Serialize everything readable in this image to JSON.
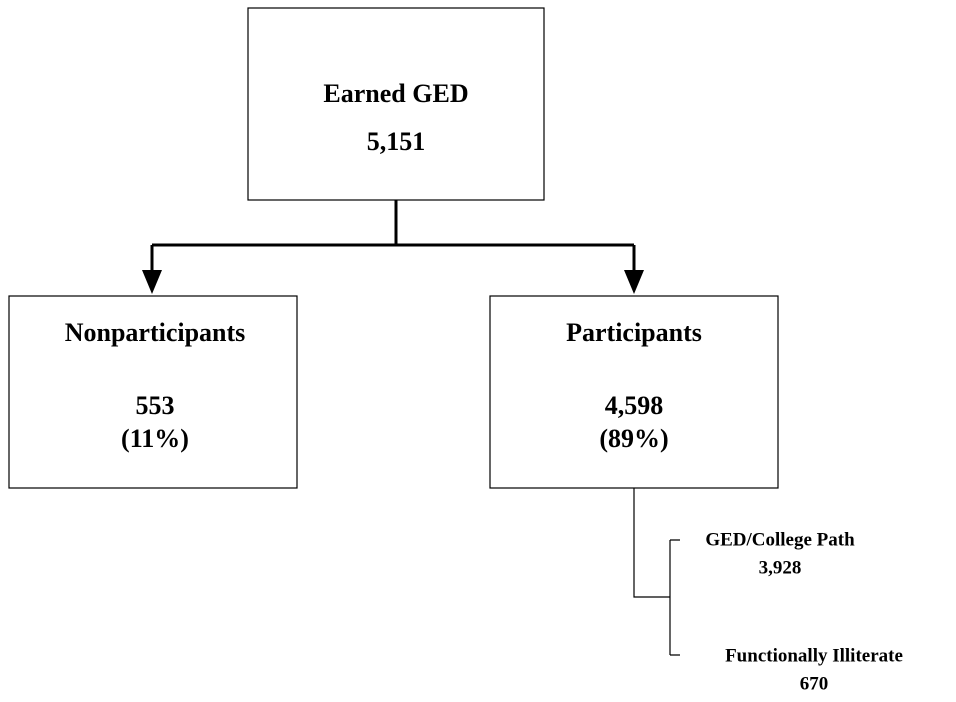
{
  "nodes": [
    {
      "label": "Earned GED",
      "value": "5,151"
    },
    {
      "label": "Nonparticipants",
      "value": "553",
      "share": "(11%)"
    },
    {
      "label": "Participants",
      "value": "4,598",
      "share": "(89%)"
    },
    {
      "label": "GED/College Path",
      "value": "3,928"
    },
    {
      "label": "Functionally Illiterate",
      "value": "670"
    }
  ]
}
